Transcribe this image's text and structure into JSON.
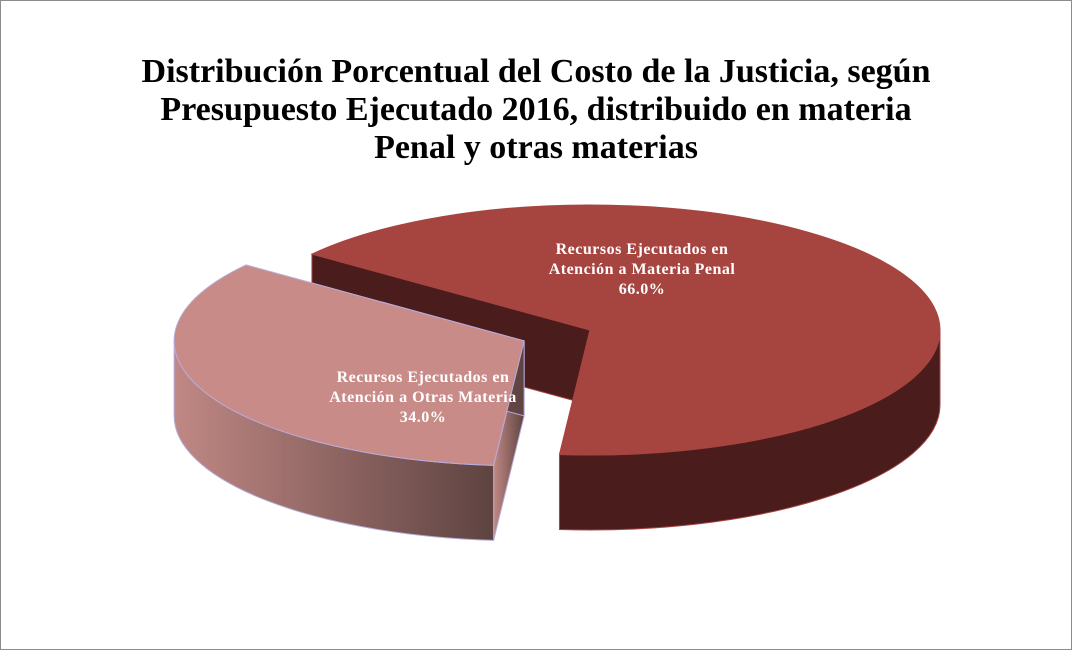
{
  "chart_data": {
    "type": "pie",
    "title": "Distribución Porcentual del Costo de la Justicia, según Presupuesto Ejecutado 2016, distribuido en materia Penal y otras materias",
    "categories": [
      "Recursos Ejecutados en Atención a Materia Penal",
      "Recursos Ejecutados en Atención a Otras Materia"
    ],
    "values": [
      66.0,
      34.0
    ],
    "value_labels": [
      "66.0%",
      "34.0%"
    ],
    "colors": [
      "#a64440",
      "#c98b88"
    ]
  }
}
